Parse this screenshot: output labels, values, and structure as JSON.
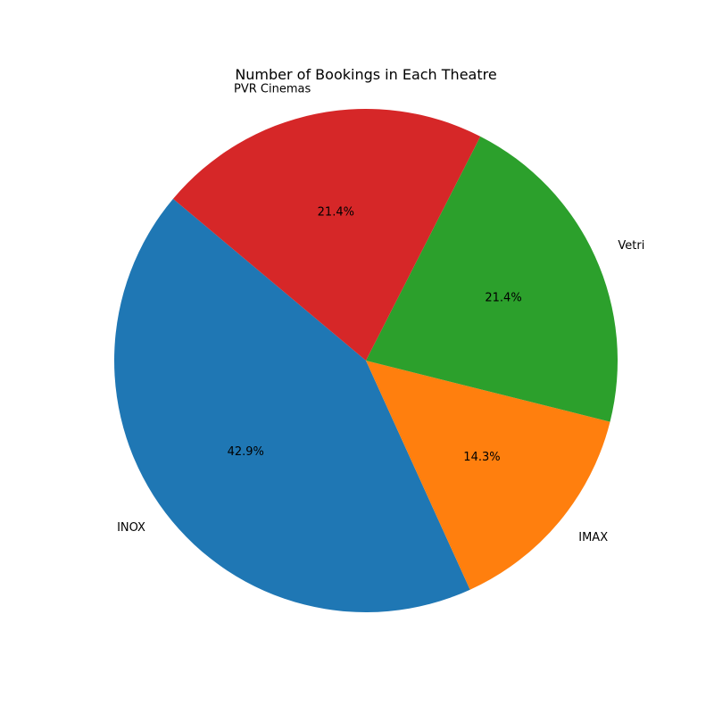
{
  "chart_data": {
    "type": "pie",
    "title": "Number of Bookings in Each Theatre",
    "categories": [
      "INOX",
      "IMAX",
      "Vetri",
      "PVR Cinemas"
    ],
    "values": [
      42.9,
      14.3,
      21.4,
      21.4
    ],
    "percent_labels": [
      "42.9%",
      "14.3%",
      "21.4%",
      "21.4%"
    ],
    "colors": [
      "#1f77b4",
      "#ff7f0e",
      "#2ca02c",
      "#d62728"
    ],
    "start_angle_deg": 140,
    "direction": "counterclockwise",
    "legend": "none"
  }
}
